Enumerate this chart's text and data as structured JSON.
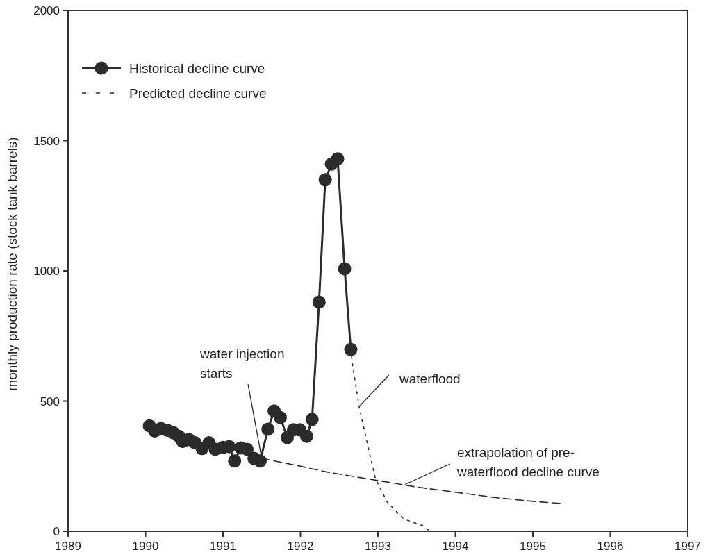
{
  "chart_data": {
    "type": "line",
    "ylabel": "monthly production rate (stock tank barrels)",
    "xlim": [
      1989,
      1997
    ],
    "xticks": [
      1989,
      1990,
      1991,
      1992,
      1993,
      1994,
      1995,
      1996,
      1997
    ],
    "ylim": [
      0,
      2000
    ],
    "yticks": [
      0,
      500,
      1000,
      1500,
      2000
    ],
    "grid": false,
    "legend": "top left",
    "series": [
      {
        "name": "Historical decline curve",
        "color": "#2b2b2b",
        "marker": "circle",
        "line_style": "solid",
        "x": [
          1990.05,
          1990.12,
          1990.2,
          1990.28,
          1990.36,
          1990.43,
          1990.48,
          1990.56,
          1990.64,
          1990.73,
          1990.82,
          1990.9,
          1991.0,
          1991.08,
          1991.15,
          1991.23,
          1991.31,
          1991.4,
          1991.48,
          1991.58,
          1991.66,
          1991.74,
          1991.83,
          1991.91,
          1991.99,
          1992.08,
          1992.15,
          1992.24,
          1992.32,
          1992.4,
          1992.48,
          1992.57,
          1992.65
        ],
        "values": [
          405,
          385,
          395,
          388,
          378,
          365,
          345,
          352,
          340,
          318,
          340,
          315,
          322,
          325,
          270,
          320,
          315,
          280,
          270,
          392,
          462,
          437,
          360,
          390,
          390,
          365,
          430,
          880,
          1350,
          1410,
          1430,
          1008,
          698
        ]
      },
      {
        "name": "Predicted decline curve",
        "color": "#2b2b2b",
        "marker": "none",
        "line_style": "dashed",
        "x": [
          1991.5,
          1992.0,
          1992.35,
          1993.0,
          1993.5,
          1994.0,
          1994.5,
          1995.0,
          1995.35
        ],
        "values": [
          280,
          250,
          227,
          195,
          170,
          150,
          130,
          115,
          107
        ]
      },
      {
        "color": "#2b2b2b",
        "marker": "none",
        "line_style": "dotted",
        "x": [
          1992.65,
          1992.67,
          1992.76,
          1992.88,
          1992.97,
          1993.12,
          1993.33,
          1993.6,
          1993.65
        ],
        "values": [
          698,
          645,
          475,
          315,
          200,
          112,
          48,
          19,
          5
        ]
      }
    ],
    "annotations": [
      {
        "text": "water injection starts",
        "x": 1991.5,
        "y": 280
      },
      {
        "text": "waterflood",
        "x": 1992.76,
        "y": 480
      },
      {
        "text": "extrapolation of pre-waterflood decline curve",
        "x": 1993.35,
        "y": 180
      }
    ]
  }
}
